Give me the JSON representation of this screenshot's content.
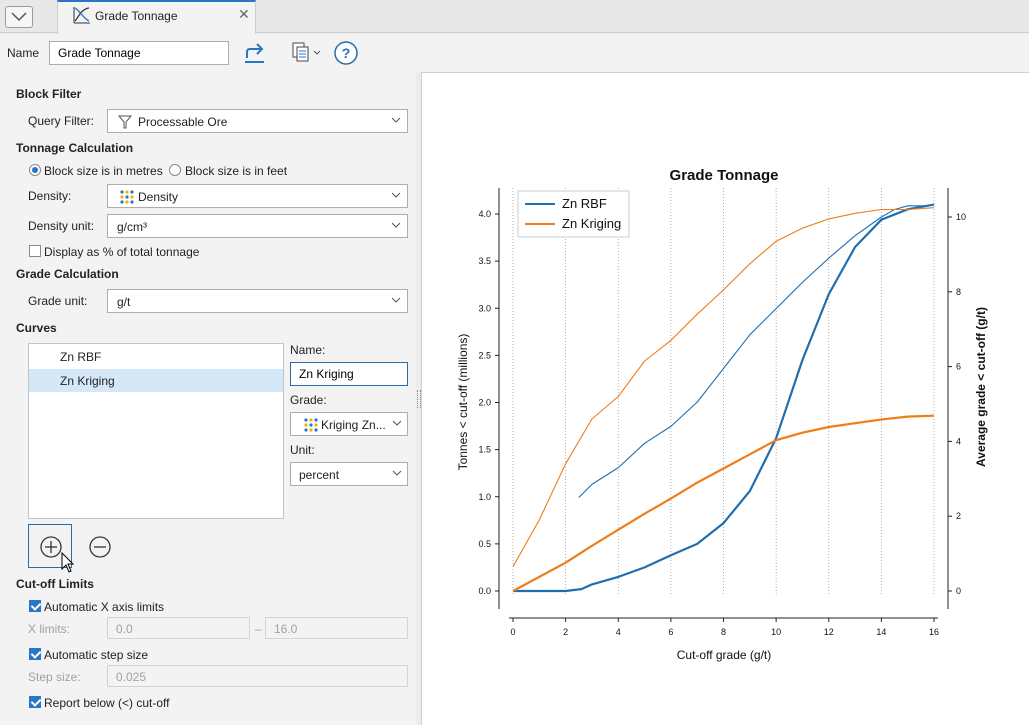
{
  "tab": {
    "title": "Grade Tonnage"
  },
  "name_row": {
    "label": "Name",
    "value": "Grade Tonnage"
  },
  "block_filter": {
    "heading": "Block Filter",
    "query_filter_label": "Query Filter:",
    "query_filter_value": "Processable Ore"
  },
  "tonnage": {
    "heading": "Tonnage Calculation",
    "radio_metres": "Block size is in metres",
    "radio_feet": "Block size is in feet",
    "density_label": "Density:",
    "density_value": "Density",
    "density_unit_label": "Density unit:",
    "density_unit_value": "g/cm³",
    "display_percent": "Display as % of total tonnage"
  },
  "grade_calc": {
    "heading": "Grade Calculation",
    "grade_unit_label": "Grade unit:",
    "grade_unit_value": "g/t"
  },
  "curves": {
    "heading": "Curves",
    "items": [
      "Zn RBF",
      "Zn Kriging"
    ],
    "selected_index": 1,
    "name_label": "Name:",
    "name_value": "Zn Kriging",
    "grade_label": "Grade:",
    "grade_value": "Kriging Zn...",
    "unit_label": "Unit:",
    "unit_value": "percent"
  },
  "cutoff": {
    "heading": "Cut-off Limits",
    "auto_x": "Automatic X axis limits",
    "x_limits_label": "X limits:",
    "x_min": "0.0",
    "x_sep": "–",
    "x_max": "16.0",
    "auto_step": "Automatic step size",
    "step_label": "Step size:",
    "step_value": "0.025",
    "report_below": "Report below (<) cut-off"
  },
  "colors": {
    "accent": "#2a75c5",
    "series_rbf": "#1f6eb0",
    "series_kriging": "#f07d1a"
  },
  "chart_data": {
    "type": "line",
    "title": "Grade Tonnage",
    "xlabel": "Cut-off grade (g/t)",
    "ylabel_left": "Tonnes < cut-off (millions)",
    "ylabel_right": "Average grade < cut-off (g/t)",
    "xlim": [
      0,
      16
    ],
    "ylim_left": [
      0,
      4.1
    ],
    "ylim_right": [
      0,
      10.3
    ],
    "x_ticks": [
      "0",
      "2",
      "4",
      "6",
      "8",
      "10",
      "12",
      "14",
      "16"
    ],
    "y_left_ticks": [
      "0.0",
      "0.5",
      "1.0",
      "1.5",
      "2.0",
      "2.5",
      "3.0",
      "3.5",
      "4.0"
    ],
    "y_right_ticks": [
      "0",
      "2",
      "4",
      "6",
      "8",
      "10"
    ],
    "legend_position": "top-left",
    "grid": "vertical dotted",
    "series": [
      {
        "name": "Zn RBF",
        "kind": "tonnage",
        "axis": "left",
        "x": [
          0,
          1,
          2,
          2.6,
          3,
          4,
          5,
          6,
          7,
          8,
          9,
          10,
          11,
          12,
          13,
          14,
          15,
          16
        ],
        "y": [
          0,
          0,
          0,
          0.02,
          0.07,
          0.15,
          0.25,
          0.38,
          0.5,
          0.72,
          1.06,
          1.62,
          2.45,
          3.15,
          3.65,
          3.94,
          4.05,
          4.1
        ]
      },
      {
        "name": "Zn RBF",
        "kind": "average_grade",
        "axis": "right",
        "x": [
          2.5,
          3,
          4,
          5,
          6,
          7,
          8,
          9,
          10,
          11,
          12,
          13,
          14,
          14.5,
          15,
          15.8
        ],
        "y": [
          2.5,
          2.85,
          3.3,
          3.95,
          4.4,
          5.05,
          5.95,
          6.85,
          7.55,
          8.25,
          8.9,
          9.5,
          10.0,
          10.2,
          10.3,
          10.3
        ]
      },
      {
        "name": "Zn Kriging",
        "kind": "tonnage",
        "axis": "left",
        "x": [
          0,
          1,
          2,
          3,
          4,
          5,
          6,
          7,
          8,
          9,
          10,
          11,
          12,
          13,
          14,
          15,
          16
        ],
        "y": [
          0,
          0.15,
          0.3,
          0.48,
          0.65,
          0.82,
          0.98,
          1.15,
          1.3,
          1.45,
          1.6,
          1.68,
          1.74,
          1.78,
          1.82,
          1.85,
          1.86
        ]
      },
      {
        "name": "Zn Kriging",
        "kind": "average_grade",
        "axis": "right",
        "x": [
          0,
          1,
          2,
          3,
          4,
          5,
          6,
          7,
          8,
          9,
          10,
          11,
          12,
          13,
          14,
          15,
          16
        ],
        "y": [
          0.65,
          1.9,
          3.4,
          4.6,
          5.2,
          6.15,
          6.7,
          7.4,
          8.05,
          8.75,
          9.35,
          9.7,
          9.95,
          10.1,
          10.2,
          10.2,
          10.25
        ]
      }
    ]
  }
}
